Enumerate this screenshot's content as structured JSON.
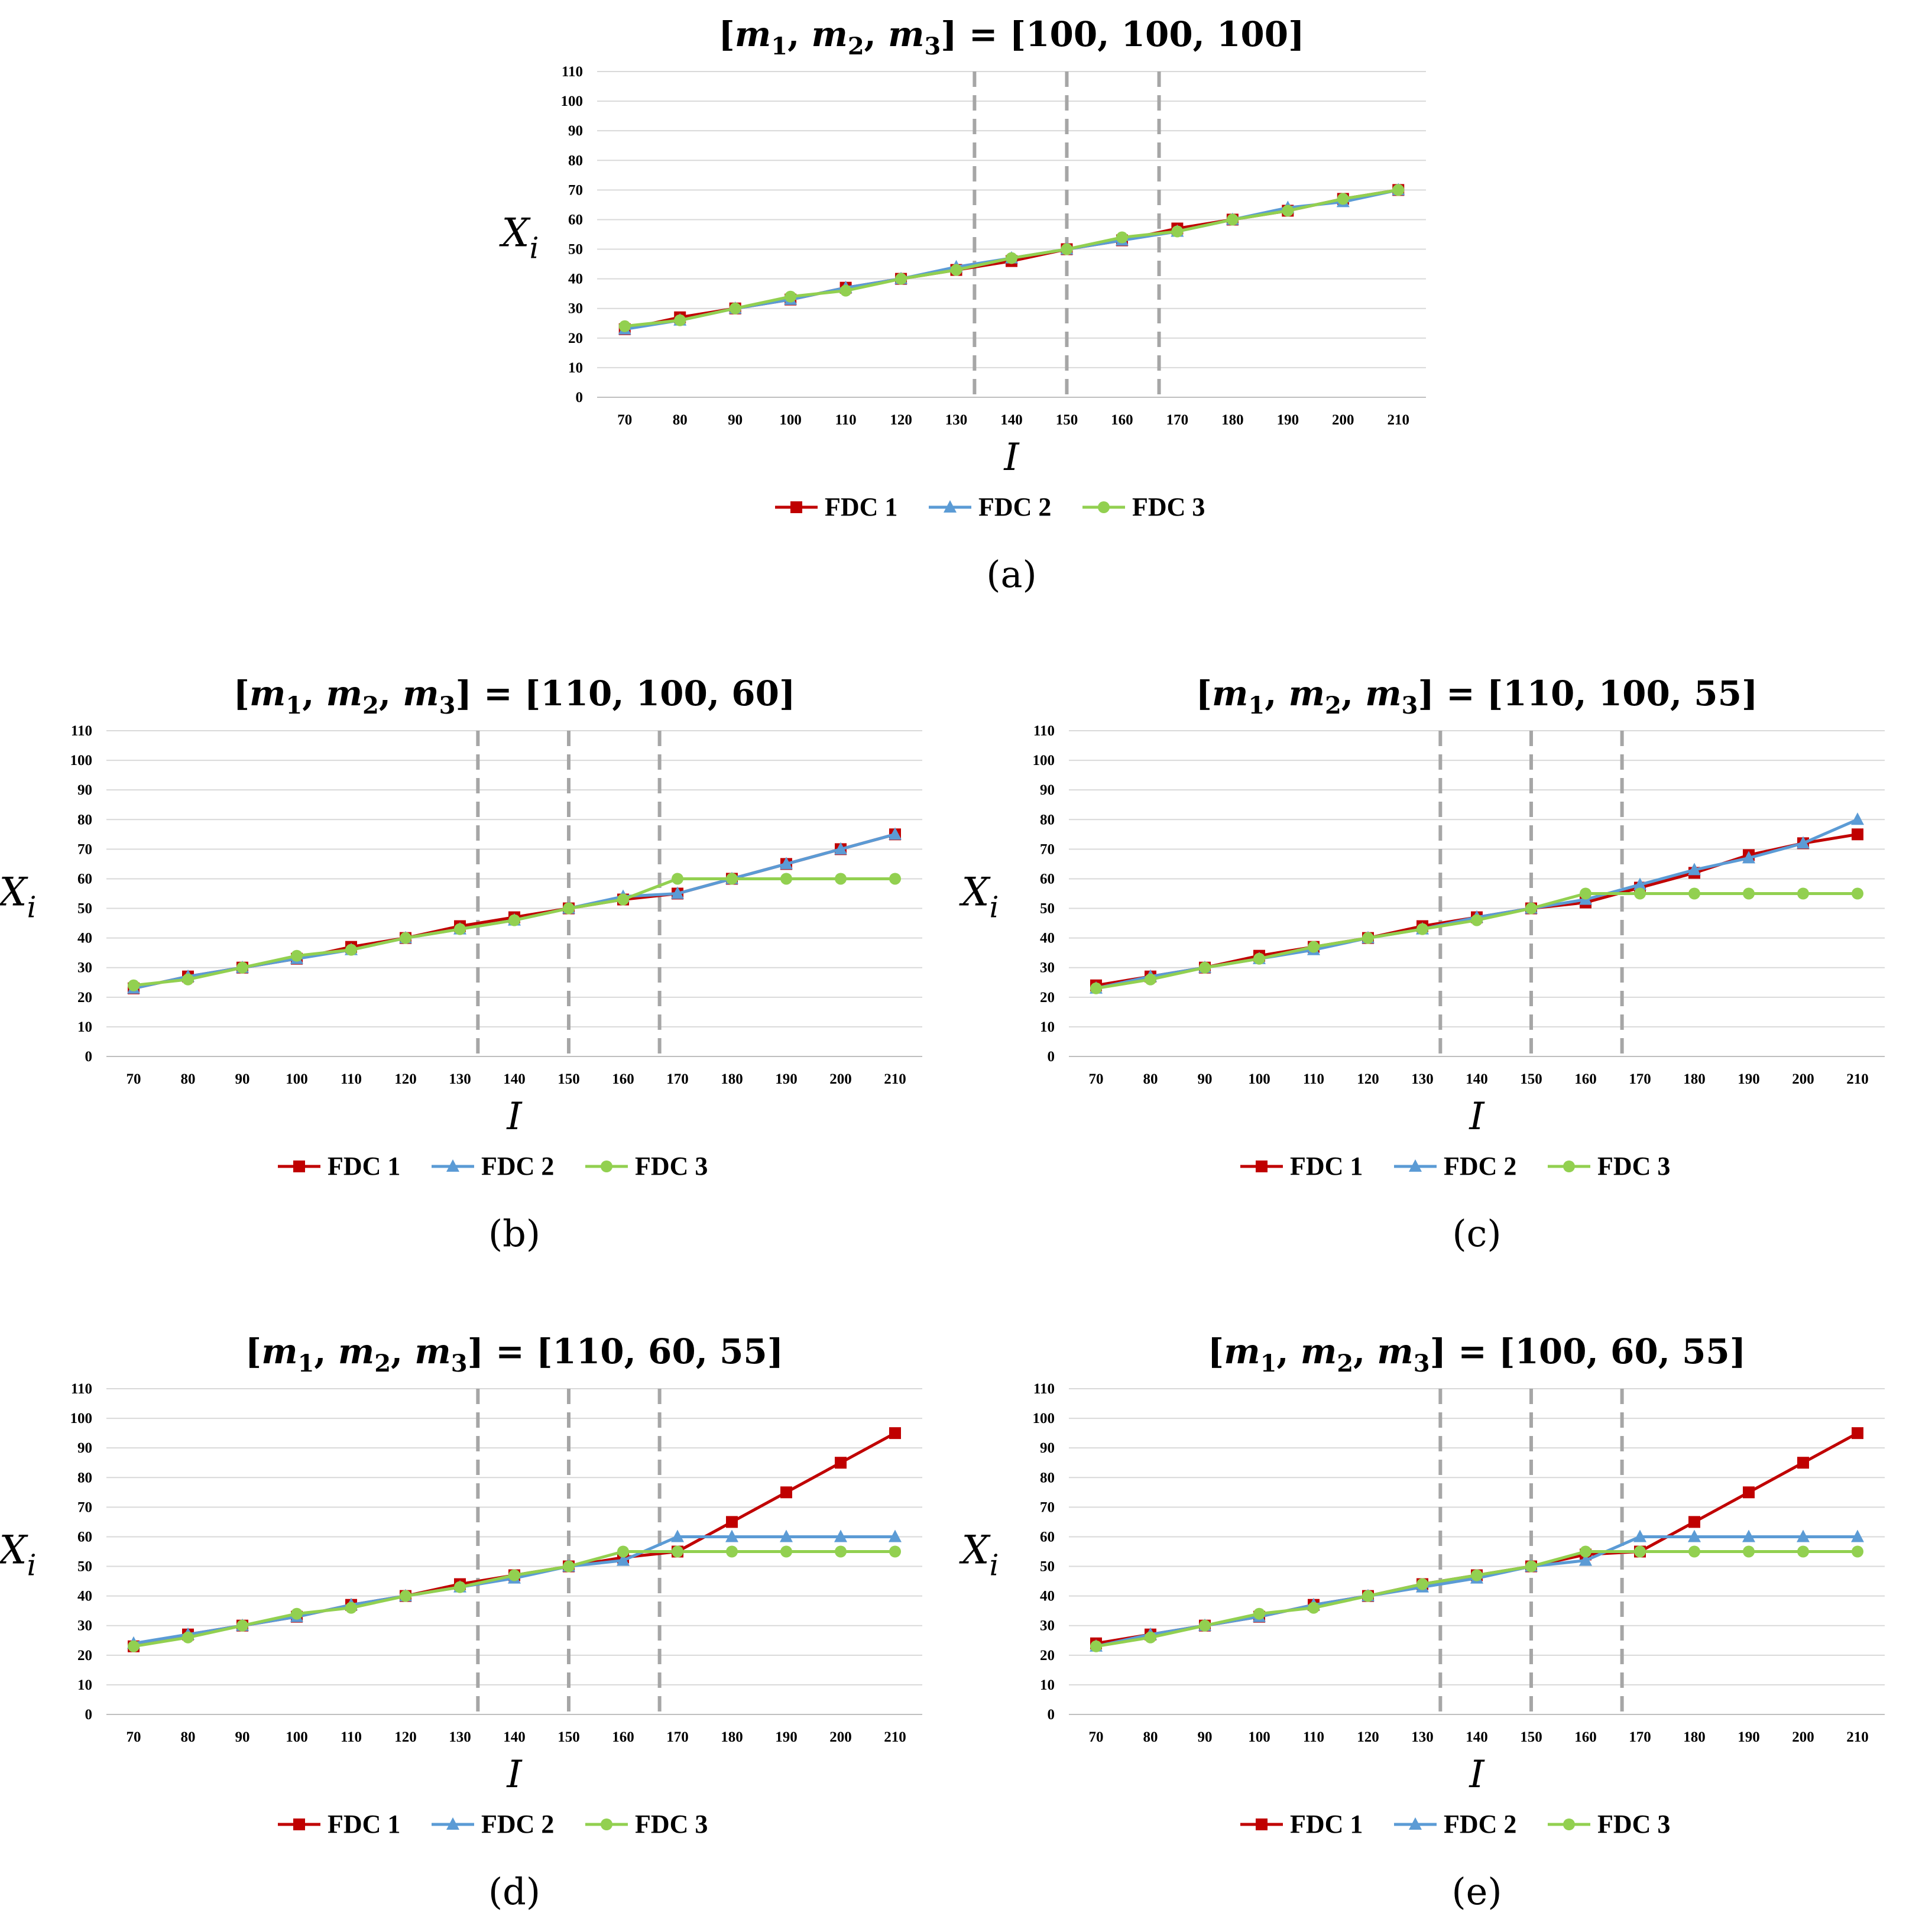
{
  "figure": {
    "series_names": [
      "FDC 1",
      "FDC 2",
      "FDC 3"
    ],
    "series_colors": [
      "#c00000",
      "#5b9bd5",
      "#92d050"
    ],
    "x_label": "I",
    "y_label": "X",
    "y_label_sub": "i",
    "title_prefix": "[m",
    "title_sub": [
      "1",
      "2",
      "3"
    ],
    "vline_color": "#a6a6a6",
    "grid_color": "#d9d9d9"
  },
  "chart_data": [
    {
      "panel": "(a)",
      "type": "line",
      "title": "[m1, m2, m3] = [100, 100, 100]",
      "title_values": "[100, 100, 100]",
      "xlabel": "I",
      "ylabel": "Xi",
      "x": [
        70,
        80,
        90,
        100,
        110,
        120,
        130,
        140,
        150,
        160,
        170,
        180,
        190,
        200,
        210
      ],
      "ylim": [
        0,
        110
      ],
      "yticks": [
        0,
        10,
        20,
        30,
        40,
        50,
        60,
        70,
        80,
        90,
        100,
        110
      ],
      "vlines": [
        133.3,
        150,
        166.7
      ],
      "series": [
        {
          "name": "FDC 1",
          "values": [
            23,
            27,
            30,
            33,
            37,
            40,
            43,
            46,
            50,
            53,
            57,
            60,
            63,
            67,
            70
          ]
        },
        {
          "name": "FDC 2",
          "values": [
            23,
            26,
            30,
            33,
            37,
            40,
            44,
            47,
            50,
            53,
            56,
            60,
            64,
            66,
            70
          ]
        },
        {
          "name": "FDC 3",
          "values": [
            24,
            26,
            30,
            34,
            36,
            40,
            43,
            47,
            50,
            54,
            56,
            60,
            63,
            67,
            70
          ]
        }
      ]
    },
    {
      "panel": "(b)",
      "type": "line",
      "title": "[m1, m2, m3] = [110, 100, 60]",
      "title_values": "[110, 100, 60]",
      "xlabel": "I",
      "ylabel": "Xi",
      "x": [
        70,
        80,
        90,
        100,
        110,
        120,
        130,
        140,
        150,
        160,
        170,
        180,
        190,
        200,
        210
      ],
      "ylim": [
        0,
        110
      ],
      "yticks": [
        0,
        10,
        20,
        30,
        40,
        50,
        60,
        70,
        80,
        90,
        100,
        110
      ],
      "vlines": [
        133.3,
        150,
        166.7
      ],
      "series": [
        {
          "name": "FDC 1",
          "values": [
            23,
            27,
            30,
            33,
            37,
            40,
            44,
            47,
            50,
            53,
            55,
            60,
            65,
            70,
            75
          ]
        },
        {
          "name": "FDC 2",
          "values": [
            23,
            27,
            30,
            33,
            36,
            40,
            43,
            46,
            50,
            54,
            55,
            60,
            65,
            70,
            75
          ]
        },
        {
          "name": "FDC 3",
          "values": [
            24,
            26,
            30,
            34,
            36,
            40,
            43,
            46,
            50,
            53,
            60,
            60,
            60,
            60,
            60
          ]
        }
      ]
    },
    {
      "panel": "(c)",
      "type": "line",
      "title": "[m1, m2, m3] = [110, 100, 55]",
      "title_values": "[110, 100, 55]",
      "xlabel": "I",
      "ylabel": "Xi",
      "x": [
        70,
        80,
        90,
        100,
        110,
        120,
        130,
        140,
        150,
        160,
        170,
        180,
        190,
        200,
        210
      ],
      "ylim": [
        0,
        110
      ],
      "yticks": [
        0,
        10,
        20,
        30,
        40,
        50,
        60,
        70,
        80,
        90,
        100,
        110
      ],
      "vlines": [
        133.3,
        150,
        166.7
      ],
      "series": [
        {
          "name": "FDC 1",
          "values": [
            24,
            27,
            30,
            34,
            37,
            40,
            44,
            47,
            50,
            52,
            57,
            62,
            68,
            72,
            75
          ]
        },
        {
          "name": "FDC 2",
          "values": [
            23,
            27,
            30,
            33,
            36,
            40,
            43,
            47,
            50,
            53,
            58,
            63,
            67,
            72,
            80
          ]
        },
        {
          "name": "FDC 3",
          "values": [
            23,
            26,
            30,
            33,
            37,
            40,
            43,
            46,
            50,
            55,
            55,
            55,
            55,
            55,
            55
          ]
        }
      ]
    },
    {
      "panel": "(d)",
      "type": "line",
      "title": "[m1, m2, m3] = [110, 60, 55]",
      "title_values": "[110, 60, 55]",
      "xlabel": "I",
      "ylabel": "Xi",
      "x": [
        70,
        80,
        90,
        100,
        110,
        120,
        130,
        140,
        150,
        160,
        170,
        180,
        190,
        200,
        210
      ],
      "ylim": [
        0,
        110
      ],
      "yticks": [
        0,
        10,
        20,
        30,
        40,
        50,
        60,
        70,
        80,
        90,
        100,
        110
      ],
      "vlines": [
        133.3,
        150,
        166.7
      ],
      "series": [
        {
          "name": "FDC 1",
          "values": [
            23,
            27,
            30,
            33,
            37,
            40,
            44,
            47,
            50,
            53,
            55,
            65,
            75,
            85,
            95
          ]
        },
        {
          "name": "FDC 2",
          "values": [
            24,
            27,
            30,
            33,
            37,
            40,
            43,
            46,
            50,
            52,
            60,
            60,
            60,
            60,
            60
          ]
        },
        {
          "name": "FDC 3",
          "values": [
            23,
            26,
            30,
            34,
            36,
            40,
            43,
            47,
            50,
            55,
            55,
            55,
            55,
            55,
            55
          ]
        }
      ]
    },
    {
      "panel": "(e)",
      "type": "line",
      "title": "[m1, m2, m3] = [100, 60, 55]",
      "title_values": "[100, 60, 55]",
      "xlabel": "I",
      "ylabel": "Xi",
      "x": [
        70,
        80,
        90,
        100,
        110,
        120,
        130,
        140,
        150,
        160,
        170,
        180,
        190,
        200,
        210
      ],
      "ylim": [
        0,
        110
      ],
      "yticks": [
        0,
        10,
        20,
        30,
        40,
        50,
        60,
        70,
        80,
        90,
        100,
        110
      ],
      "vlines": [
        133.3,
        150,
        166.7
      ],
      "series": [
        {
          "name": "FDC 1",
          "values": [
            24,
            27,
            30,
            33,
            37,
            40,
            44,
            47,
            50,
            54,
            55,
            65,
            75,
            85,
            95
          ]
        },
        {
          "name": "FDC 2",
          "values": [
            23,
            27,
            30,
            33,
            37,
            40,
            43,
            46,
            50,
            52,
            60,
            60,
            60,
            60,
            60
          ]
        },
        {
          "name": "FDC 3",
          "values": [
            23,
            26,
            30,
            34,
            36,
            40,
            44,
            47,
            50,
            55,
            55,
            55,
            55,
            55,
            55
          ]
        }
      ]
    }
  ]
}
